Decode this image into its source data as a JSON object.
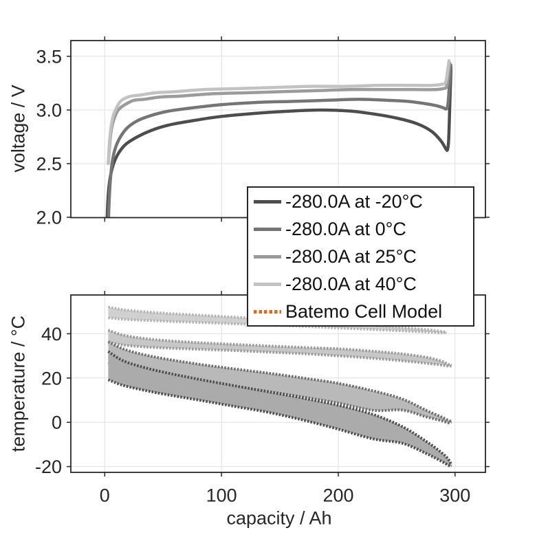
{
  "figure": {
    "bg": "#ffffff",
    "frame_color": "#262626",
    "grid_color": "#e0e0e0",
    "text_color": "#262626",
    "accent_orange": "#e8661a"
  },
  "legend": {
    "items": [
      {
        "label": "-280.0A at -20°C",
        "color": "#4d4d4d",
        "style": "solid"
      },
      {
        "label": "-280.0A at 0°C",
        "color": "#757575",
        "style": "solid"
      },
      {
        "label": "-280.0A at 25°C",
        "color": "#9b9b9b",
        "style": "solid"
      },
      {
        "label": "-280.0A at 40°C",
        "color": "#c2c2c2",
        "style": "solid"
      },
      {
        "label": "Batemo Cell Model",
        "color": "#e8661a",
        "style": "dotted"
      }
    ]
  },
  "chart_data": [
    {
      "type": "line",
      "title": "",
      "ylabel": "voltage / V",
      "xlabel": "",
      "grid": true,
      "xlim": [
        -29,
        326
      ],
      "ylim": [
        1.997,
        3.647
      ],
      "xticks": [
        0,
        100,
        200,
        300
      ],
      "xtick_labels": [],
      "yticks": [
        3.5,
        3.0,
        2.5,
        2.0
      ],
      "ytick_labels": [
        "3.5",
        "3.0",
        "2.5",
        "2.0"
      ],
      "series": [
        {
          "name": "-280.0A at -20°C",
          "color": "#4d4d4d",
          "x": [
            2,
            2.6,
            3.5,
            5,
            8,
            12,
            18,
            28,
            40,
            55,
            75,
            100,
            130,
            160,
            185,
            210,
            232,
            252,
            268,
            280,
            288,
            292,
            293.5,
            294.5,
            295.5,
            296.5
          ],
          "y": [
            1.97,
            2.13,
            2.27,
            2.39,
            2.51,
            2.6,
            2.68,
            2.75,
            2.81,
            2.86,
            2.9,
            2.94,
            2.97,
            2.99,
            3.0,
            2.99,
            2.96,
            2.92,
            2.87,
            2.8,
            2.71,
            2.64,
            2.63,
            2.72,
            3.05,
            3.4
          ]
        },
        {
          "name": "-280.0A at 0°C",
          "color": "#757575",
          "x": [
            3.2,
            4,
            5,
            6.5,
            9,
            13,
            19,
            28,
            40,
            55,
            75,
            100,
            130,
            160,
            190,
            218,
            242,
            260,
            274,
            284,
            290,
            292.5,
            294,
            295.2,
            296.3
          ],
          "y": [
            1.97,
            2.2,
            2.37,
            2.52,
            2.64,
            2.74,
            2.83,
            2.9,
            2.95,
            2.99,
            3.02,
            3.05,
            3.07,
            3.08,
            3.09,
            3.1,
            3.09,
            3.08,
            3.06,
            3.04,
            3.02,
            3.01,
            3.06,
            3.25,
            3.42
          ]
        },
        {
          "name": "-280.0A at 25°C",
          "color": "#9b9b9b",
          "x": [
            3,
            4,
            5,
            6.5,
            8.5,
            11,
            14.5,
            19,
            25,
            34,
            47,
            65,
            90,
            120,
            150,
            180,
            210,
            240,
            264,
            282,
            290,
            292.8,
            294.2,
            295.3
          ],
          "y": [
            2.5,
            2.64,
            2.76,
            2.86,
            2.93,
            2.99,
            3.03,
            3.06,
            3.09,
            3.1,
            3.12,
            3.13,
            3.15,
            3.16,
            3.17,
            3.18,
            3.19,
            3.19,
            3.19,
            3.19,
            3.2,
            3.22,
            3.33,
            3.44
          ]
        },
        {
          "name": "-280.0A at 40°C",
          "color": "#c2c2c2",
          "x": [
            3,
            4,
            5,
            6.3,
            8,
            10.5,
            13.5,
            17.5,
            23,
            31,
            43,
            60,
            85,
            115,
            145,
            175,
            205,
            235,
            260,
            280,
            289,
            292,
            293.5,
            294.8
          ],
          "y": [
            2.5,
            2.69,
            2.81,
            2.9,
            2.97,
            3.03,
            3.08,
            3.11,
            3.13,
            3.14,
            3.16,
            3.17,
            3.19,
            3.2,
            3.21,
            3.22,
            3.22,
            3.23,
            3.23,
            3.23,
            3.24,
            3.26,
            3.36,
            3.46
          ]
        }
      ]
    },
    {
      "type": "band",
      "title": "",
      "ylabel": "temperature / °C",
      "xlabel": "capacity / Ah",
      "grid": true,
      "xlim": [
        -29,
        326
      ],
      "ylim": [
        -22.6,
        57.5
      ],
      "xticks": [
        0,
        100,
        200,
        300
      ],
      "xtick_labels": [
        "0",
        "100",
        "200",
        "300"
      ],
      "yticks": [
        40,
        20,
        0,
        -20
      ],
      "ytick_labels": [
        "40",
        "20",
        "0",
        "-20"
      ],
      "bands": [
        {
          "name": "-280.0A at 40°C",
          "edge_color": "#b3b3b3",
          "fill_color": "#d0d0d0",
          "top": [
            [
              3,
              52
            ],
            [
              20,
              50.6
            ],
            [
              50,
              49.3
            ],
            [
              80,
              48.4
            ],
            [
              110,
              47.5
            ],
            [
              140,
              46.6
            ],
            [
              170,
              45.7
            ],
            [
              200,
              44.8
            ],
            [
              230,
              43.7
            ],
            [
              255,
              42.8
            ],
            [
              275,
              41.9
            ],
            [
              288,
              41.1
            ],
            [
              293,
              40.6
            ]
          ],
          "bottom": [
            [
              3,
              47.2
            ],
            [
              20,
              46.4
            ],
            [
              50,
              45.7
            ],
            [
              80,
              45.1
            ],
            [
              110,
              44.5
            ],
            [
              140,
              43.9
            ],
            [
              170,
              43.3
            ],
            [
              200,
              42.6
            ],
            [
              230,
              41.9
            ],
            [
              255,
              41.3
            ],
            [
              275,
              40.8
            ],
            [
              288,
              40.4
            ],
            [
              293,
              40.5
            ]
          ]
        },
        {
          "name": "-280.0A at 25°C",
          "edge_color": "#9a9a9a",
          "fill_color": "#c7c7c7",
          "top": [
            [
              3,
              41.6
            ],
            [
              15,
              39.5
            ],
            [
              30,
              38.1
            ],
            [
              50,
              37
            ],
            [
              80,
              36
            ],
            [
              110,
              35.2
            ],
            [
              140,
              34.5
            ],
            [
              170,
              33.8
            ],
            [
              200,
              33.2
            ],
            [
              230,
              32.1
            ],
            [
              255,
              30.9
            ],
            [
              275,
              29.4
            ],
            [
              288,
              27.7
            ],
            [
              294,
              26.2
            ],
            [
              297,
              25.7
            ]
          ],
          "bottom": [
            [
              3,
              36.2
            ],
            [
              15,
              35
            ],
            [
              30,
              34.2
            ],
            [
              50,
              33.6
            ],
            [
              80,
              33
            ],
            [
              110,
              32.4
            ],
            [
              140,
              31.7
            ],
            [
              170,
              31
            ],
            [
              200,
              30
            ],
            [
              230,
              28.9
            ],
            [
              255,
              27.8
            ],
            [
              275,
              26.7
            ],
            [
              288,
              25.9
            ],
            [
              294,
              25.4
            ],
            [
              297,
              25.5
            ]
          ]
        },
        {
          "name": "-280.0A at 0°C",
          "edge_color": "#6e6e6e",
          "fill_color": "#b9b9b9",
          "top": [
            [
              3,
              36.4
            ],
            [
              15,
              33.3
            ],
            [
              30,
              31
            ],
            [
              50,
              28.8
            ],
            [
              80,
              26.3
            ],
            [
              110,
              24.2
            ],
            [
              140,
              22.2
            ],
            [
              170,
              20
            ],
            [
              200,
              17.6
            ],
            [
              230,
              14.2
            ],
            [
              255,
              10.5
            ],
            [
              275,
              5.5
            ],
            [
              288,
              2.5
            ],
            [
              294,
              1
            ],
            [
              297,
              0.3
            ]
          ],
          "bottom": [
            [
              3,
              27
            ],
            [
              15,
              24.8
            ],
            [
              30,
              23
            ],
            [
              50,
              21
            ],
            [
              80,
              18.5
            ],
            [
              110,
              16.2
            ],
            [
              140,
              13.9
            ],
            [
              170,
              11.4
            ],
            [
              200,
              8.7
            ],
            [
              230,
              5.4
            ],
            [
              255,
              5.5
            ],
            [
              275,
              2.5
            ],
            [
              288,
              0.8
            ],
            [
              294,
              -0.2
            ],
            [
              297,
              0
            ]
          ]
        },
        {
          "name": "-280.0A at -20°C",
          "edge_color": "#4d4d4d",
          "fill_color": "#ababab",
          "top": [
            [
              3,
              32
            ],
            [
              15,
              28
            ],
            [
              30,
              25.3
            ],
            [
              50,
              22.7
            ],
            [
              80,
              19.5
            ],
            [
              110,
              16.6
            ],
            [
              140,
              13.8
            ],
            [
              170,
              10.9
            ],
            [
              200,
              7.7
            ],
            [
              230,
              3.5
            ],
            [
              255,
              -2
            ],
            [
              275,
              -8.5
            ],
            [
              288,
              -13.5
            ],
            [
              294,
              -16.5
            ],
            [
              297,
              -19.3
            ]
          ],
          "bottom": [
            [
              3,
              19.2
            ],
            [
              15,
              16.8
            ],
            [
              30,
              14.9
            ],
            [
              50,
              12.8
            ],
            [
              80,
              10.1
            ],
            [
              110,
              7.3
            ],
            [
              140,
              4.5
            ],
            [
              170,
              1
            ],
            [
              200,
              -3.1
            ],
            [
              230,
              -7.5
            ],
            [
              255,
              -9.5
            ],
            [
              275,
              -14
            ],
            [
              288,
              -17.5
            ],
            [
              294,
              -19.3
            ],
            [
              297,
              -20
            ]
          ]
        }
      ]
    }
  ]
}
